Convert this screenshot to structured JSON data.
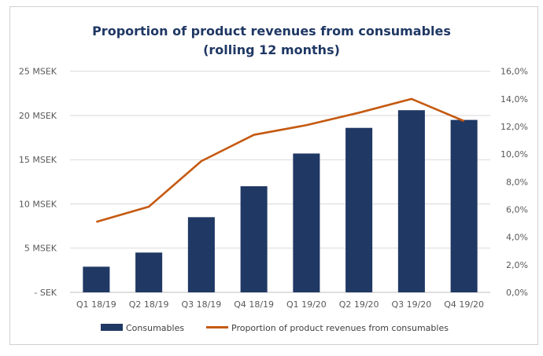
{
  "chart_data": {
    "type": "bar+line",
    "title": "Proportion of product revenues from consumables",
    "subtitle": "(rolling 12 months)",
    "categories": [
      "Q1 18/19",
      "Q2 18/19",
      "Q3 18/19",
      "Q4 18/19",
      "Q1 19/20",
      "Q2 19/20",
      "Q3 19/20",
      "Q4 19/20"
    ],
    "series": [
      {
        "name": "Consumables",
        "type": "bar",
        "axis": "left",
        "unit": "MSEK",
        "color": "#203864",
        "values": [
          2.9,
          4.5,
          8.5,
          12.0,
          15.7,
          18.6,
          20.6,
          19.5
        ]
      },
      {
        "name": "Proportion of product revenues from consumables",
        "type": "line",
        "axis": "right",
        "unit": "%",
        "color": "#c55a11",
        "values": [
          5.1,
          6.2,
          9.5,
          11.4,
          12.1,
          13.0,
          14.0,
          12.4
        ]
      }
    ],
    "left_axis": {
      "ylim": [
        0,
        25
      ],
      "ticks": [
        "- SEK",
        "5 MSEK",
        "10 MSEK",
        "15 MSEK",
        "20 MSEK",
        "25 MSEK"
      ]
    },
    "right_axis": {
      "ylim": [
        0,
        16
      ],
      "ticks": [
        "0,0%",
        "2,0%",
        "4,0%",
        "6,0%",
        "8,0%",
        "10,0%",
        "12,0%",
        "14,0%",
        "16,0%"
      ]
    },
    "grid": "horizontal",
    "legend": "bottom"
  }
}
